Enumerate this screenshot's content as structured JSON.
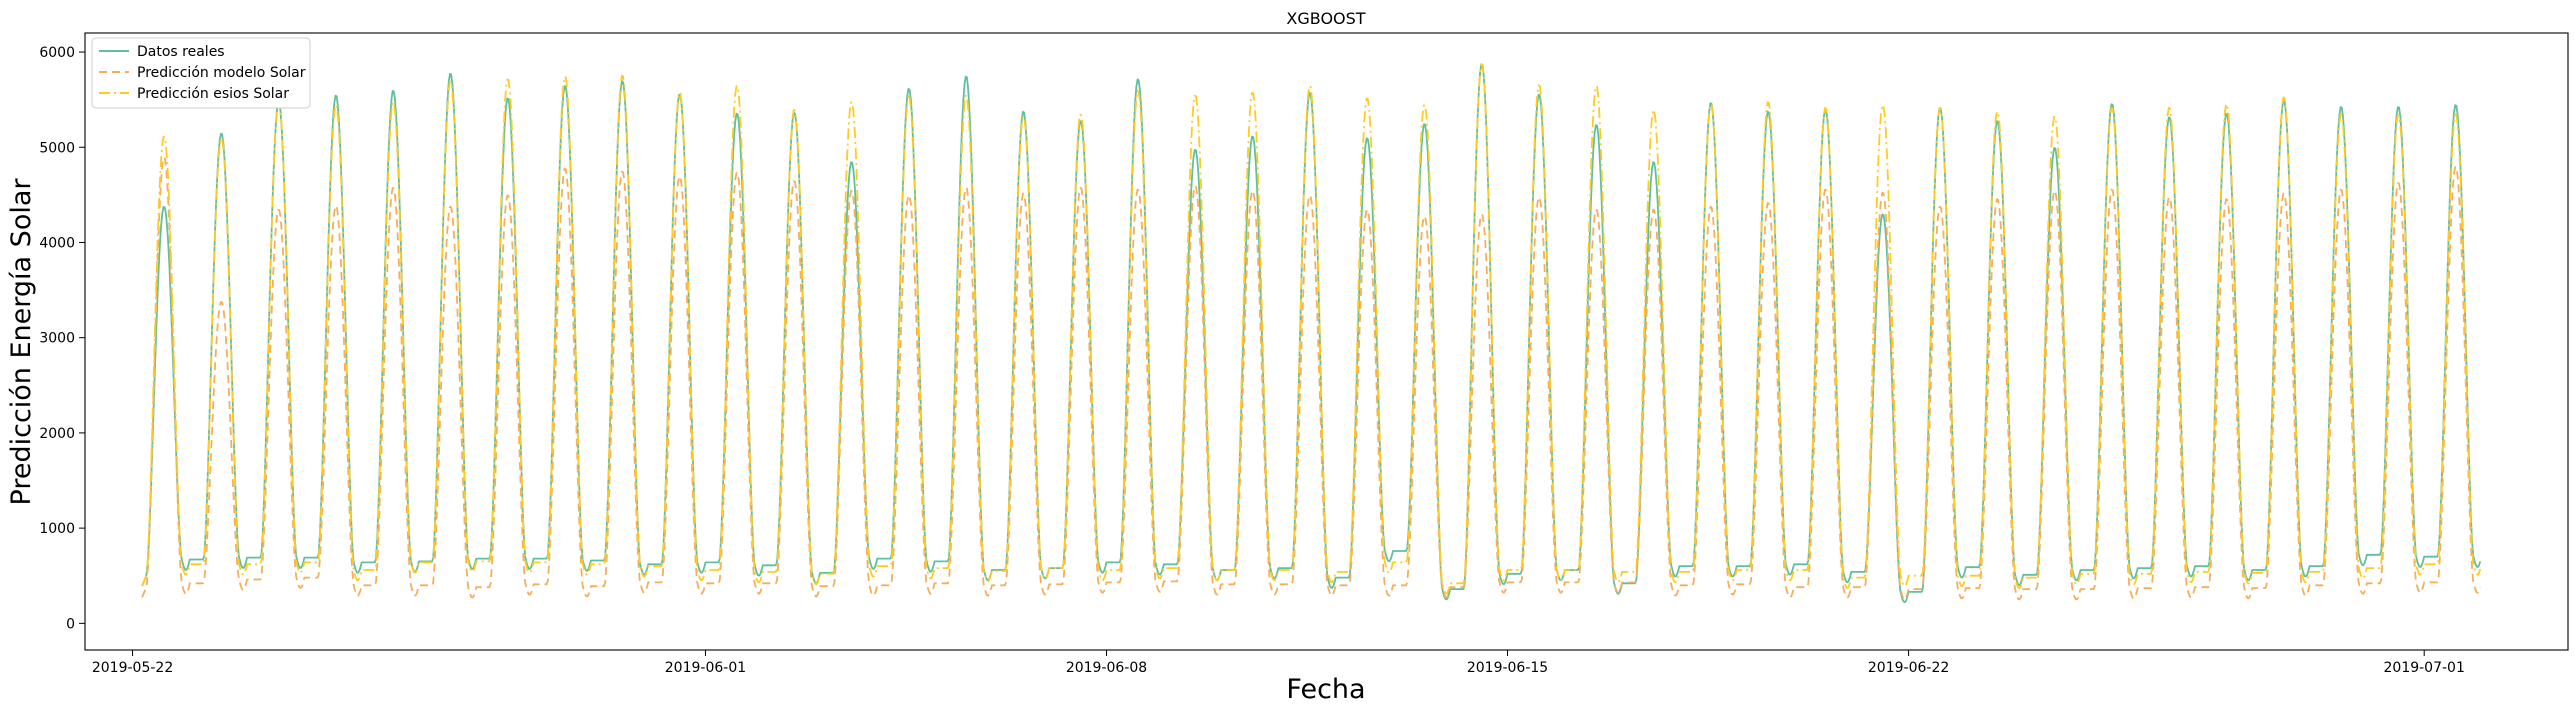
{
  "chart_data": {
    "type": "line",
    "title": "XGBOOST",
    "xlabel": "Fecha",
    "ylabel": "Predicción Energía Solar",
    "x_ticks": [
      "2019-05-22",
      "2019-06-01",
      "2019-06-08",
      "2019-06-15",
      "2019-06-22",
      "2019-07-01"
    ],
    "x_tick_days": [
      0,
      10,
      17,
      24,
      31,
      40
    ],
    "y_ticks": [
      "0",
      "1000",
      "2000",
      "3000",
      "4000",
      "5000",
      "6000"
    ],
    "xlim_days": [
      -0.83,
      42.51
    ],
    "ylim": [
      -280,
      6200
    ],
    "grid": false,
    "legend_position": "top-left",
    "days": [
      "2019-05-23",
      "2019-05-24",
      "2019-05-25",
      "2019-05-26",
      "2019-05-27",
      "2019-05-28",
      "2019-05-29",
      "2019-05-30",
      "2019-05-31",
      "2019-06-01",
      "2019-06-02",
      "2019-06-03",
      "2019-06-04",
      "2019-06-05",
      "2019-06-06",
      "2019-06-07",
      "2019-06-08",
      "2019-06-09",
      "2019-06-10",
      "2019-06-11",
      "2019-06-12",
      "2019-06-13",
      "2019-06-14",
      "2019-06-15",
      "2019-06-16",
      "2019-06-17",
      "2019-06-18",
      "2019-06-19",
      "2019-06-20",
      "2019-06-21",
      "2019-06-22",
      "2019-06-23",
      "2019-06-24",
      "2019-06-25",
      "2019-06-26",
      "2019-06-27",
      "2019-06-28",
      "2019-06-29",
      "2019-06-30",
      "2019-07-01",
      "2019-07-02"
    ],
    "series": [
      {
        "name": "Datos reales",
        "color": "#5fbf9f",
        "dash": "",
        "daily_peak": [
          4380,
          5150,
          5480,
          5550,
          5600,
          5780,
          5520,
          5650,
          5700,
          5560,
          5360,
          5370,
          4850,
          5620,
          5750,
          5380,
          5280,
          5720,
          4980,
          5120,
          5580,
          5100,
          5250,
          5880,
          5560,
          5240,
          4850,
          5470,
          5380,
          5400,
          4300,
          5420,
          5280,
          5000,
          5460,
          5320,
          5360,
          5500,
          5430,
          5430,
          5450
        ],
        "night_base": [
          500,
          670,
          690,
          690,
          640,
          650,
          680,
          680,
          660,
          620,
          640,
          610,
          530,
          680,
          650,
          560,
          580,
          640,
          620,
          560,
          580,
          480,
          760,
          360,
          520,
          560,
          420,
          600,
          600,
          620,
          540,
          330,
          590,
          510,
          560,
          580,
          600,
          560,
          600,
          720,
          700
        ]
      },
      {
        "name": "Predicción modelo Solar",
        "color": "#f4ae5c",
        "dash": "8,5",
        "daily_peak": [
          4900,
          3380,
          4350,
          4390,
          4580,
          4380,
          4500,
          4780,
          4750,
          4700,
          4740,
          4650,
          4550,
          4500,
          4580,
          4520,
          4580,
          4560,
          4600,
          4550,
          4500,
          4350,
          4280,
          4300,
          4480,
          4350,
          4350,
          4380,
          4420,
          4560,
          4530,
          4380,
          4460,
          4550,
          4560,
          4480,
          4460,
          4520,
          4560,
          4630,
          4800
        ],
        "night_base": [
          380,
          420,
          460,
          480,
          400,
          400,
          380,
          410,
          390,
          430,
          420,
          420,
          390,
          400,
          420,
          400,
          410,
          430,
          440,
          410,
          410,
          400,
          400,
          380,
          430,
          430,
          430,
          400,
          410,
          380,
          380,
          360,
          370,
          360,
          360,
          370,
          380,
          370,
          400,
          420,
          430
        ]
      },
      {
        "name": "Predicción esios Solar",
        "color": "#ffcb1f",
        "dash": "11,4,2,4",
        "daily_peak": [
          5120,
          5100,
          5500,
          5450,
          5480,
          5700,
          5720,
          5750,
          5760,
          5580,
          5650,
          5400,
          5480,
          5540,
          5550,
          5330,
          5350,
          5600,
          5550,
          5580,
          5650,
          5520,
          5450,
          5880,
          5660,
          5650,
          5400,
          5460,
          5480,
          5420,
          5450,
          5420,
          5380,
          5330,
          5420,
          5420,
          5460,
          5530,
          5350,
          5350,
          5350
        ],
        "night_base": [
          500,
          620,
          620,
          640,
          560,
          640,
          650,
          640,
          620,
          600,
          560,
          540,
          520,
          600,
          580,
          550,
          580,
          560,
          580,
          560,
          560,
          540,
          640,
          420,
          560,
          560,
          540,
          540,
          560,
          560,
          480,
          500,
          500,
          480,
          520,
          520,
          540,
          530,
          540,
          580,
          620
        ]
      }
    ]
  }
}
